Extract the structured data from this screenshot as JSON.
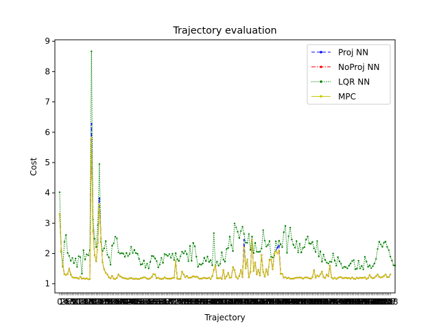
{
  "chart_data": {
    "type": "line",
    "title": "Trajectory evaluation",
    "xlabel": "Trajectory",
    "ylabel": "Cost",
    "ylim": [
      0.7,
      9.05
    ],
    "xlim": [
      -3,
      211
    ],
    "yticks": [
      1,
      2,
      3,
      4,
      5,
      6,
      7,
      8,
      9
    ],
    "x_tick_labels_overlapping": true,
    "legend_position": "upper right",
    "grid": false,
    "mpc_baseline": [
      1.34,
      1.43,
      1.37,
      1.32,
      1.29,
      1.33,
      1.28,
      1.26,
      1.22,
      1.2,
      1.18,
      1.19,
      1.17,
      1.23,
      1.17,
      1.18,
      1.16,
      1.18,
      1.15,
      1.16,
      1.15,
      1.27,
      1.42,
      1.74,
      2.34,
      2.16,
      1.96,
      1.73,
      1.48,
      1.36,
      1.31,
      1.21,
      1.18,
      1.26,
      1.17,
      1.16,
      1.19,
      1.31,
      1.25,
      1.22,
      1.19,
      1.18,
      1.17,
      1.16,
      1.18,
      1.19,
      1.17,
      1.16,
      1.17,
      1.16,
      1.16,
      1.18,
      1.19,
      1.22,
      1.2,
      1.17,
      1.16,
      1.18,
      1.23,
      1.32,
      1.31,
      1.18,
      1.2,
      1.17,
      1.16,
      1.17,
      1.21,
      1.18,
      1.17,
      1.17,
      1.17,
      1.19,
      1.2,
      1.19,
      1.17,
      1.16,
      1.16,
      1.2,
      1.31,
      1.22,
      1.26,
      1.2,
      1.2,
      1.21,
      1.25,
      1.23,
      1.24,
      1.21,
      1.17,
      1.17,
      1.18,
      1.2,
      1.18,
      1.18,
      1.2,
      1.16,
      1.25,
      1.46,
      1.3,
      1.18,
      1.18,
      1.2,
      1.16,
      1.35,
      1.17,
      1.25,
      1.36,
      1.2,
      1.21,
      1.16,
      1.45,
      1.23,
      1.17,
      1.25,
      1.45,
      1.22,
      1.5,
      1.51,
      1.2,
      1.21,
      1.39,
      1.17,
      1.42,
      1.26,
      1.31,
      1.46,
      1.27,
      1.66,
      1.39,
      1.24,
      1.48,
      1.3,
      1.8,
      1.8,
      1.48,
      1.99,
      2.08,
      1.79,
      1.36,
      1.33,
      1.33,
      1.2,
      1.22,
      1.18,
      1.2,
      1.17,
      1.17,
      1.17,
      1.19,
      1.2,
      1.2,
      1.21,
      1.2,
      1.17,
      1.2,
      1.21,
      1.2,
      1.18,
      1.17,
      1.22,
      1.3,
      1.2,
      1.27,
      1.24,
      1.31,
      1.4,
      1.22,
      1.19,
      1.3,
      1.25,
      1.19,
      1.21,
      1.17,
      1.2,
      1.16,
      1.19,
      1.22,
      1.22,
      1.18,
      1.19,
      1.2,
      1.18,
      1.19,
      1.17,
      1.21,
      1.17,
      1.16,
      1.2,
      1.18,
      1.2,
      1.19,
      1.2,
      1.21,
      1.16,
      1.19,
      1.29,
      1.21,
      1.18,
      1.2,
      1.25,
      1.31,
      1.23,
      1.21,
      1.22,
      1.26,
      1.31,
      1.22,
      1.22,
      1.31
    ],
    "mpc_spikes": [
      [
        0,
        3.3
      ],
      [
        1,
        2.1
      ],
      [
        2,
        1.6
      ],
      [
        6,
        1.5
      ],
      [
        7,
        1.3
      ],
      [
        10,
        1.2
      ],
      [
        20,
        5.8
      ],
      [
        21,
        2.75
      ],
      [
        22,
        1.95
      ],
      [
        25,
        3.6
      ],
      [
        26,
        2.5
      ],
      [
        27,
        1.7
      ],
      [
        73,
        1.75
      ],
      [
        77,
        1.4
      ],
      [
        98,
        1.6
      ],
      [
        103,
        1.45
      ],
      [
        109,
        1.55
      ],
      [
        116,
        2.2
      ],
      [
        118,
        1.8
      ],
      [
        121,
        2.45
      ],
      [
        123,
        1.7
      ],
      [
        127,
        1.95
      ],
      [
        137,
        2.0
      ],
      [
        138,
        2.1
      ],
      [
        160,
        1.45
      ],
      [
        170,
        1.6
      ]
    ],
    "series": [
      {
        "name": "Proj NN",
        "color": "#0000ff",
        "linestyle": "dashed",
        "marker": "o",
        "offsets": [
          [
            20,
            0.48
          ],
          [
            25,
            0.22
          ],
          [
            116,
            0.25
          ],
          [
            137,
            0.2
          ],
          [
            138,
            0.15
          ]
        ]
      },
      {
        "name": "NoProj NN",
        "color": "#ff0000",
        "linestyle": "dashdot",
        "marker": "o",
        "offsets": []
      },
      {
        "name": "LQR NN",
        "color": "#008000",
        "linestyle": "dotted",
        "marker": "o",
        "values": [
          4.02,
          2.05,
          1.56,
          2.38,
          2.61,
          2.02,
          1.92,
          1.76,
          1.85,
          1.68,
          1.83,
          1.56,
          1.91,
          1.88,
          1.33,
          2.11,
          1.8,
          1.97,
          1.94,
          2.11,
          8.67,
          3.12,
          2.49,
          2.21,
          2.93,
          4.95,
          2.38,
          2.08,
          2.17,
          2.41,
          1.96,
          1.87,
          1.63,
          2.26,
          2.34,
          2.55,
          2.5,
          2.04,
          2.0,
          2.01,
          2.0,
          1.89,
          2.02,
          1.92,
          1.98,
          2.22,
          2.02,
          2.12,
          2.01,
          1.99,
          1.82,
          1.63,
          1.65,
          1.77,
          1.54,
          1.66,
          1.51,
          1.72,
          1.92,
          1.91,
          1.84,
          1.75,
          1.54,
          1.64,
          1.85,
          1.69,
          1.98,
          1.96,
          1.92,
          1.98,
          1.86,
          1.99,
          1.79,
          2.01,
          1.81,
          1.75,
          1.91,
          2.06,
          2.0,
          2.08,
          1.98,
          1.75,
          2.25,
          1.76,
          2.35,
          2.24,
          1.9,
          1.56,
          1.65,
          1.63,
          1.67,
          1.86,
          1.75,
          1.9,
          1.72,
          1.78,
          1.61,
          2.67,
          1.6,
          1.73,
          1.6,
          1.66,
          2.04,
          1.8,
          1.73,
          2.15,
          2.18,
          2.56,
          2.27,
          2.08,
          2.99,
          2.86,
          2.72,
          2.51,
          2.74,
          2.88,
          2.64,
          2.36,
          2.35,
          2.64,
          2.12,
          2.56,
          2.01,
          2.35,
          2.06,
          2.05,
          2.06,
          2.16,
          2.77,
          2.43,
          2.23,
          2.28,
          2.41,
          1.89,
          1.87,
          1.93,
          2.4,
          2.19,
          2.42,
          2.3,
          2.21,
          2.7,
          2.91,
          2.02,
          2.57,
          2.85,
          2.46,
          2.29,
          2.19,
          2.41,
          2.04,
          2.32,
          2.03,
          2.18,
          2.21,
          2.46,
          2.56,
          2.33,
          2.32,
          2.38,
          2.17,
          2.05,
          2.41,
          1.9,
          2.07,
          1.73,
          1.96,
          1.79,
          1.7,
          1.67,
          1.73,
          1.72,
          2.0,
          1.77,
          1.6,
          1.88,
          1.74,
          1.66,
          1.52,
          1.56,
          1.55,
          1.51,
          1.6,
          1.67,
          1.75,
          1.78,
          1.48,
          1.5,
          1.76,
          1.51,
          1.59,
          1.48,
          1.89,
          1.73,
          1.56,
          1.61,
          1.52,
          1.58,
          1.67,
          1.82,
          2.15,
          2.39,
          2.3,
          2.22,
          2.36,
          2.39,
          2.22,
          2.11,
          1.9,
          1.77,
          1.61,
          1.6
        ]
      },
      {
        "name": "MPC",
        "color": "#c8c800",
        "linestyle": "solid",
        "marker": "o",
        "base": true
      }
    ]
  }
}
